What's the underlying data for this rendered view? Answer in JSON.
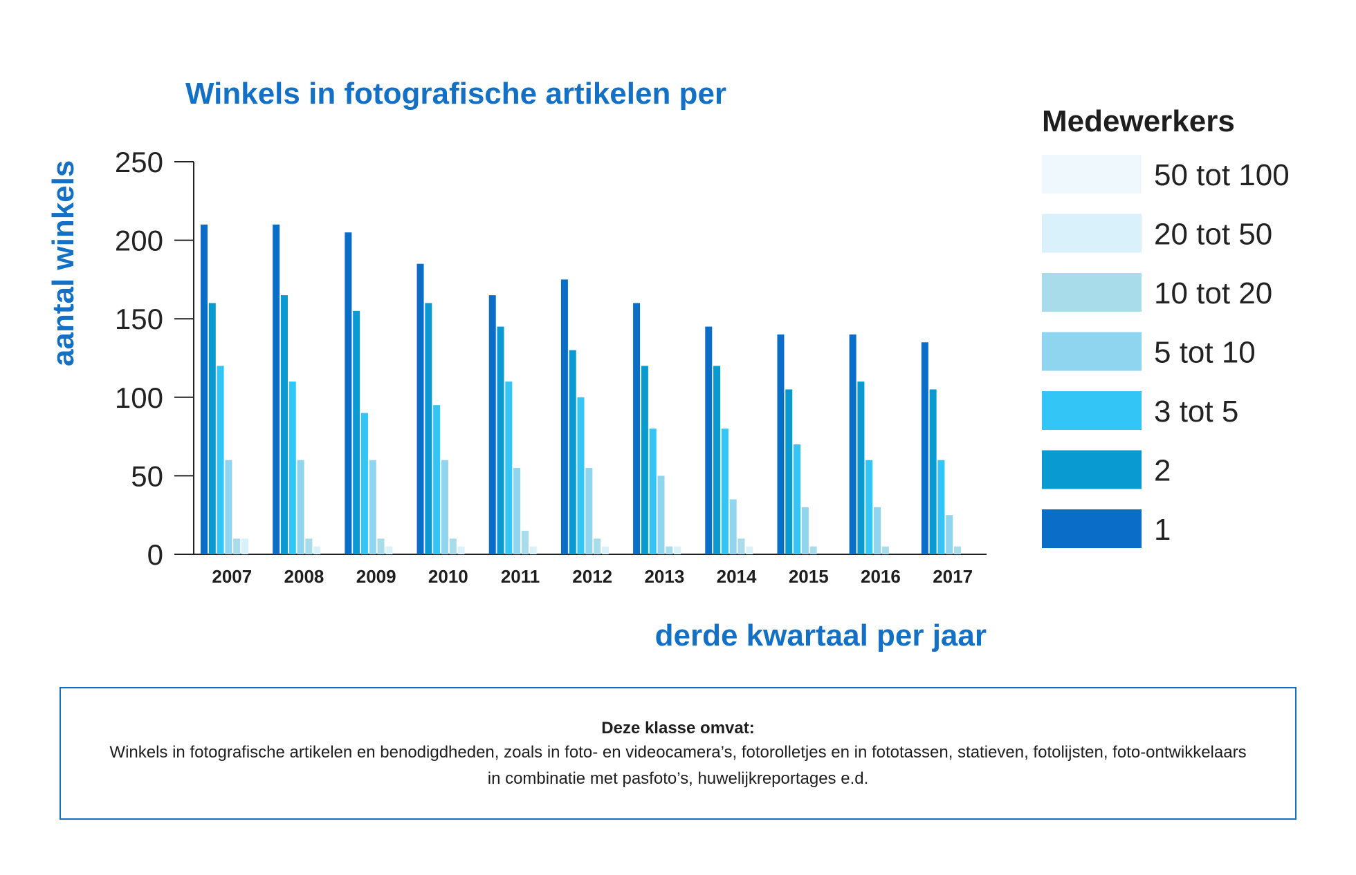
{
  "chart_data": {
    "type": "bar",
    "title": "Winkels in fotografische artikelen per",
    "xlabel": "derde kwartaal per jaar",
    "ylabel": "aantal winkels",
    "ylim": [
      0,
      250
    ],
    "yticks": [
      0,
      50,
      100,
      150,
      200,
      250
    ],
    "grid": false,
    "categories": [
      "2007",
      "2008",
      "2009",
      "2010",
      "2011",
      "2012",
      "2013",
      "2014",
      "2015",
      "2016",
      "2017"
    ],
    "legend": {
      "title": "Medewerkers",
      "placement": "right"
    },
    "series": [
      {
        "name": "1",
        "color": "#0a6dc8",
        "values": [
          210,
          210,
          205,
          185,
          165,
          175,
          160,
          145,
          140,
          140,
          135
        ]
      },
      {
        "name": "2",
        "color": "#0a9ad2",
        "values": [
          160,
          165,
          155,
          160,
          145,
          130,
          120,
          120,
          105,
          110,
          105
        ]
      },
      {
        "name": "3 tot 5",
        "color": "#34c5f7",
        "values": [
          120,
          110,
          90,
          95,
          110,
          100,
          80,
          80,
          70,
          60,
          60
        ]
      },
      {
        "name": "5 tot 10",
        "color": "#8fd5f0",
        "values": [
          60,
          60,
          60,
          60,
          55,
          55,
          50,
          35,
          30,
          30,
          25
        ]
      },
      {
        "name": "10 tot 20",
        "color": "#a8dcea",
        "values": [
          10,
          10,
          10,
          10,
          15,
          10,
          5,
          10,
          5,
          5,
          5
        ]
      },
      {
        "name": "20 tot 50",
        "color": "#d8f1fb",
        "values": [
          10,
          5,
          5,
          5,
          5,
          5,
          5,
          5,
          0,
          0,
          0
        ]
      },
      {
        "name": "50 tot 100",
        "color": "#eef8fd",
        "values": [
          0,
          0,
          0,
          0,
          0,
          0,
          0,
          0,
          0,
          0,
          0
        ]
      }
    ]
  },
  "note": {
    "heading": "Deze klasse omvat:",
    "text": "Winkels in fotografische artikelen en benodigdheden, zoals in foto- en videocamera’s, fotorolletjes en in fototassen, statieven, fotolijsten, foto-ontwikkelaars in combinatie met pasfoto’s, huwelijkreportages e.d."
  }
}
